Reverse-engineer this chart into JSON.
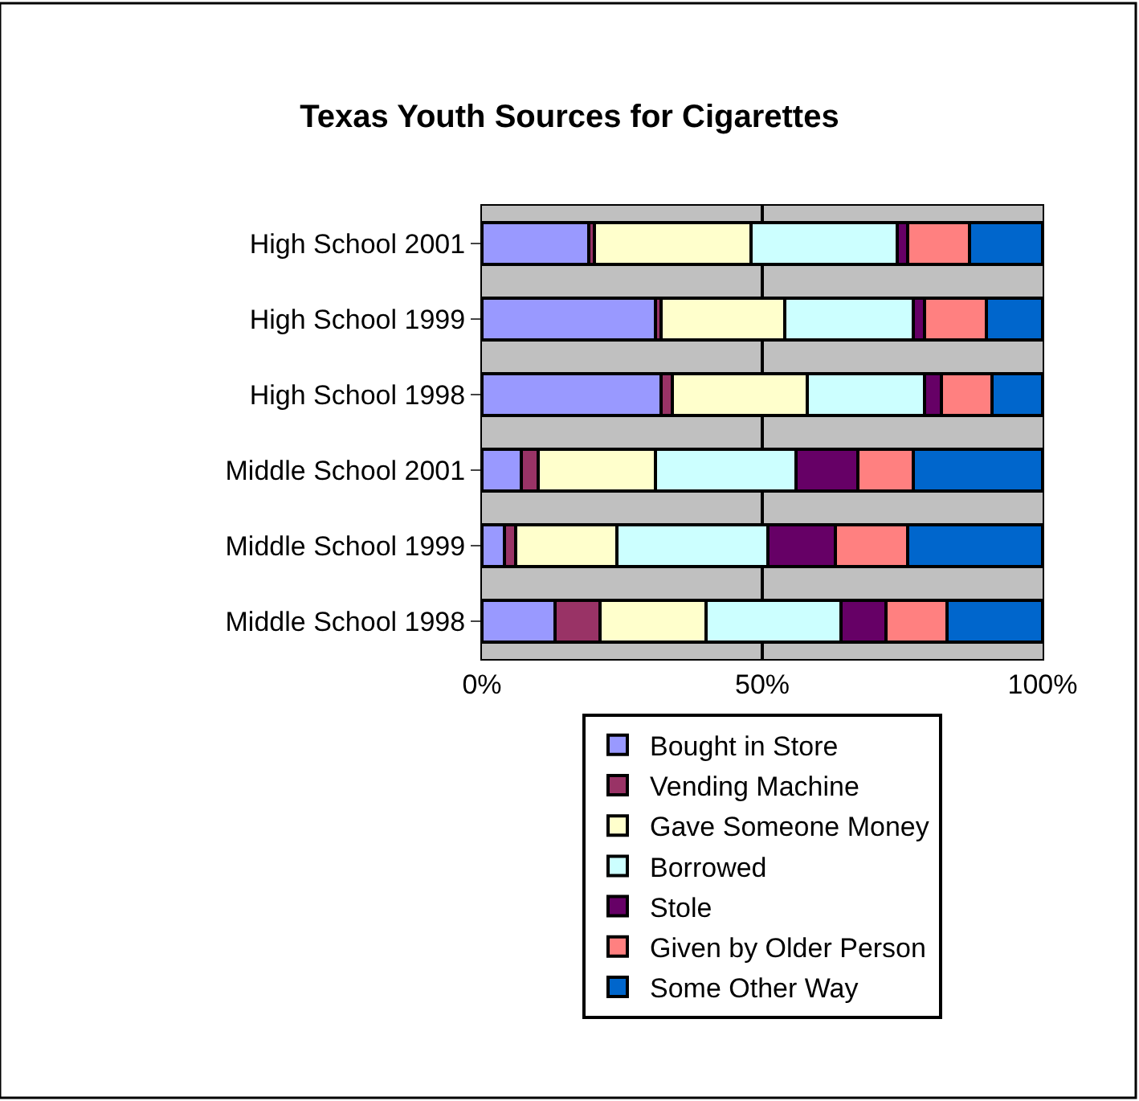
{
  "chart_data": {
    "type": "bar",
    "orientation": "horizontal",
    "stacked": true,
    "title": "Texas Youth Sources for Cigarettes",
    "categories": [
      "High School 2001",
      "High School 1999",
      "High School 1998",
      "Middle School 2001",
      "Middle School 1999",
      "Middle School 1998"
    ],
    "series": [
      {
        "name": "Bought in Store",
        "color": "#9999ff",
        "values": [
          19,
          31,
          32,
          7,
          4,
          13
        ]
      },
      {
        "name": "Vending Machine",
        "color": "#993366",
        "values": [
          1,
          1,
          2,
          3,
          2,
          8
        ]
      },
      {
        "name": "Gave Someone Money",
        "color": "#ffffcc",
        "values": [
          28,
          22,
          24,
          21,
          18,
          19
        ]
      },
      {
        "name": "Borrowed",
        "color": "#ccffff",
        "values": [
          26,
          23,
          21,
          25,
          27,
          24
        ]
      },
      {
        "name": "Stole",
        "color": "#660066",
        "values": [
          2,
          2,
          3,
          11,
          12,
          8
        ]
      },
      {
        "name": "Given by Older Person",
        "color": "#ff8080",
        "values": [
          11,
          11,
          9,
          10,
          13,
          11
        ]
      },
      {
        "name": "Some Other Way",
        "color": "#0066cc",
        "values": [
          13,
          10,
          9,
          23,
          24,
          17
        ]
      }
    ],
    "xlim": [
      0,
      100
    ],
    "xticks": [
      {
        "value": 0,
        "label": "0%"
      },
      {
        "value": 50,
        "label": "50%"
      },
      {
        "value": 100,
        "label": "100%"
      }
    ],
    "grid": "x",
    "legend": "bottom"
  }
}
